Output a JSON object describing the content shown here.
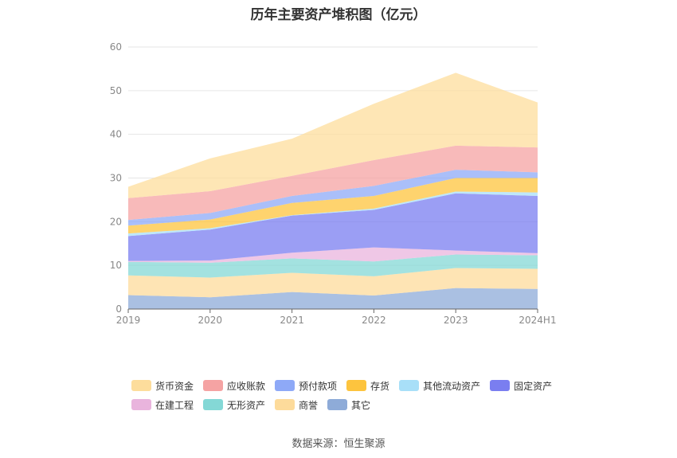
{
  "title": "历年主要资产堆积图（亿元）",
  "source": "数据来源：恒生聚源",
  "legend_rows": [
    [
      {
        "name": "货币资金",
        "color": "#fddd9c"
      },
      {
        "name": "应收账款",
        "color": "#f5a3a3"
      },
      {
        "name": "预付款项",
        "color": "#8ea9f7"
      },
      {
        "name": "存货",
        "color": "#fdc43e"
      },
      {
        "name": "其他流动资产",
        "color": "#a8dff8"
      },
      {
        "name": "固定资产",
        "color": "#7a7ef0"
      }
    ],
    [
      {
        "name": "在建工程",
        "color": "#e9b4dd"
      },
      {
        "name": "无形资产",
        "color": "#84d8d6"
      },
      {
        "name": "商誉",
        "color": "#fddb9b"
      },
      {
        "name": "其它",
        "color": "#8eabd8"
      }
    ]
  ],
  "chart_data": {
    "type": "area",
    "stacked": true,
    "title": "历年主要资产堆积图（亿元）",
    "categories": [
      "2019",
      "2020",
      "2021",
      "2022",
      "2023",
      "2024H1"
    ],
    "ylim": [
      0,
      60
    ],
    "yticks": [
      0,
      10,
      20,
      30,
      40,
      50,
      60
    ],
    "grid": true,
    "legend_position": "bottom",
    "series": [
      {
        "name": "其它",
        "color": "#8eabd8",
        "values": [
          3.2,
          2.7,
          3.9,
          3.1,
          4.8,
          4.6
        ]
      },
      {
        "name": "商誉",
        "color": "#fddb9b",
        "values": [
          4.5,
          4.5,
          4.4,
          4.4,
          4.6,
          4.6
        ]
      },
      {
        "name": "无形资产",
        "color": "#84d8d6",
        "values": [
          3.1,
          3.4,
          3.3,
          3.4,
          3.1,
          3.1
        ]
      },
      {
        "name": "在建工程",
        "color": "#e9b4dd",
        "values": [
          0.2,
          0.5,
          1.3,
          3.2,
          0.9,
          0.5
        ]
      },
      {
        "name": "固定资产",
        "color": "#7a7ef0",
        "values": [
          5.7,
          7.1,
          8.5,
          8.6,
          13.1,
          13.1
        ]
      },
      {
        "name": "其他流动资产",
        "color": "#a8dff8",
        "values": [
          0.6,
          0.3,
          0.1,
          0.3,
          0.4,
          0.8
        ]
      },
      {
        "name": "存货",
        "color": "#fdc43e",
        "values": [
          1.8,
          2.0,
          2.8,
          2.9,
          3.1,
          3.3
        ]
      },
      {
        "name": "预付款项",
        "color": "#8ea9f7",
        "values": [
          1.3,
          1.5,
          1.6,
          2.3,
          1.9,
          1.3
        ]
      },
      {
        "name": "应收账款",
        "color": "#f5a3a3",
        "values": [
          5.0,
          5.0,
          4.6,
          5.9,
          5.5,
          5.7
        ]
      },
      {
        "name": "货币资金",
        "color": "#fddd9c",
        "values": [
          2.6,
          7.5,
          8.5,
          12.9,
          16.7,
          10.3
        ]
      }
    ]
  }
}
